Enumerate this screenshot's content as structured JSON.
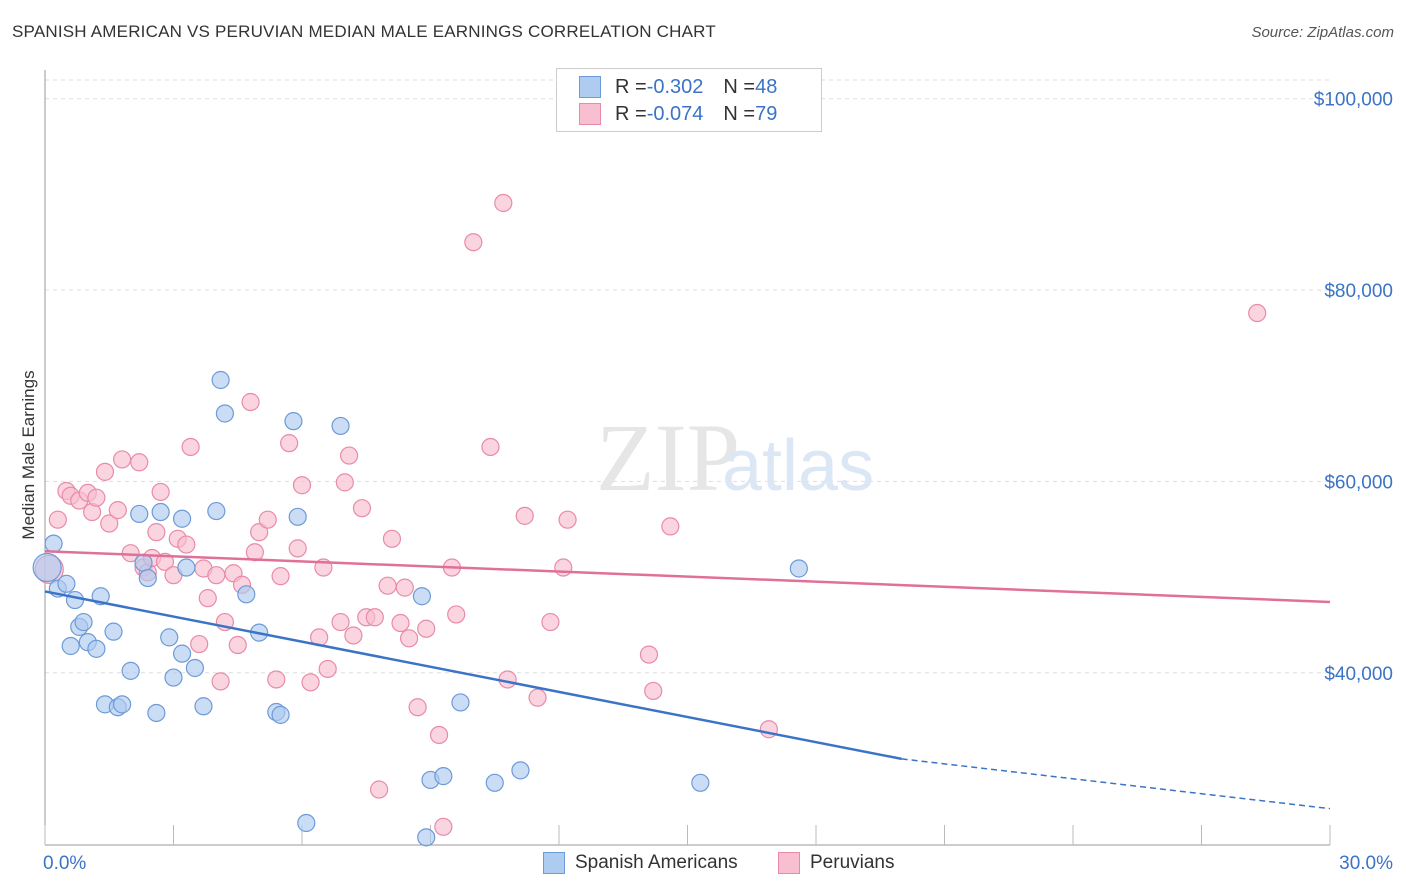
{
  "header": {
    "title": "SPANISH AMERICAN VS PERUVIAN MEDIAN MALE EARNINGS CORRELATION CHART",
    "source": "Source: ZipAtlas.com"
  },
  "legend": {
    "rows": [
      {
        "r_label": "R = ",
        "r_value": "-0.302",
        "n_label": "N = ",
        "n_value": "48"
      },
      {
        "r_label": "R = ",
        "r_value": "-0.074",
        "n_label": "N = ",
        "n_value": "79"
      }
    ]
  },
  "colors": {
    "blue_fill": "#aecbf0",
    "blue_stroke": "#6d9ad8",
    "blue_line": "#3b73c6",
    "pink_fill": "#f7bfd0",
    "pink_stroke": "#e98aaa",
    "pink_line": "#e07098",
    "axis_text": "#3b73c6",
    "grid": "#dddddd"
  },
  "chart_data": {
    "type": "scatter",
    "xlabel": "",
    "ylabel": "Median Male Earnings",
    "xlim": [
      0,
      30
    ],
    "ylim": [
      22000,
      103000
    ],
    "x_tick_labels": [
      "0.0%",
      "30.0%"
    ],
    "y_ticks": [
      40000,
      60000,
      80000,
      100000
    ],
    "y_tick_labels": [
      "$40,000",
      "$60,000",
      "$80,000",
      "$100,000"
    ],
    "grid": true,
    "legend_position": "top-center",
    "watermark": "ZIPatlas",
    "series": [
      {
        "name": "Spanish Americans",
        "trend": {
          "x": [
            0,
            20
          ],
          "y": [
            48500,
            31000
          ],
          "dashed_to": [
            30,
            25800
          ]
        },
        "points": [
          [
            0.05,
            51000
          ],
          [
            0.2,
            53500
          ],
          [
            0.3,
            48800
          ],
          [
            0.5,
            49300
          ],
          [
            0.6,
            42800
          ],
          [
            0.7,
            47600
          ],
          [
            0.8,
            44800
          ],
          [
            0.9,
            45300
          ],
          [
            1.0,
            43200
          ],
          [
            1.2,
            42500
          ],
          [
            1.3,
            48000
          ],
          [
            1.4,
            36700
          ],
          [
            1.6,
            44300
          ],
          [
            1.7,
            36400
          ],
          [
            1.8,
            36700
          ],
          [
            2.0,
            40200
          ],
          [
            2.2,
            56600
          ],
          [
            2.3,
            51500
          ],
          [
            2.4,
            49900
          ],
          [
            2.6,
            35800
          ],
          [
            2.7,
            56800
          ],
          [
            2.9,
            43700
          ],
          [
            3.0,
            39500
          ],
          [
            3.2,
            42000
          ],
          [
            3.2,
            56100
          ],
          [
            3.3,
            51000
          ],
          [
            3.5,
            40500
          ],
          [
            3.7,
            36500
          ],
          [
            4.0,
            56900
          ],
          [
            4.1,
            70600
          ],
          [
            4.2,
            67100
          ],
          [
            4.7,
            48200
          ],
          [
            5.0,
            44200
          ],
          [
            5.4,
            35900
          ],
          [
            5.5,
            35600
          ],
          [
            5.8,
            66300
          ],
          [
            5.9,
            56300
          ],
          [
            6.1,
            24300
          ],
          [
            6.9,
            65800
          ],
          [
            8.8,
            48000
          ],
          [
            8.9,
            22800
          ],
          [
            9.0,
            28800
          ],
          [
            9.3,
            29200
          ],
          [
            9.7,
            36900
          ],
          [
            10.5,
            28500
          ],
          [
            11.1,
            29800
          ],
          [
            15.3,
            28500
          ],
          [
            17.6,
            50900
          ]
        ]
      },
      {
        "name": "Peruvians",
        "trend": {
          "x": [
            0,
            30
          ],
          "y": [
            52700,
            47400
          ]
        },
        "points": [
          [
            0.1,
            50800
          ],
          [
            0.3,
            56000
          ],
          [
            0.5,
            59000
          ],
          [
            0.6,
            58500
          ],
          [
            0.8,
            58000
          ],
          [
            1.0,
            58800
          ],
          [
            1.1,
            56800
          ],
          [
            1.2,
            58300
          ],
          [
            1.4,
            61000
          ],
          [
            1.5,
            55600
          ],
          [
            1.7,
            57000
          ],
          [
            1.8,
            62300
          ],
          [
            2.0,
            52500
          ],
          [
            2.2,
            62000
          ],
          [
            2.3,
            51000
          ],
          [
            2.4,
            50500
          ],
          [
            2.5,
            52000
          ],
          [
            2.6,
            54700
          ],
          [
            2.7,
            58900
          ],
          [
            2.8,
            51600
          ],
          [
            3.0,
            50200
          ],
          [
            3.1,
            54000
          ],
          [
            3.3,
            53400
          ],
          [
            3.4,
            63600
          ],
          [
            3.6,
            43000
          ],
          [
            3.7,
            50900
          ],
          [
            3.8,
            47800
          ],
          [
            4.0,
            50200
          ],
          [
            4.1,
            39100
          ],
          [
            4.2,
            45300
          ],
          [
            4.4,
            50400
          ],
          [
            4.5,
            42900
          ],
          [
            4.6,
            49200
          ],
          [
            4.8,
            68300
          ],
          [
            4.9,
            52600
          ],
          [
            5.0,
            54700
          ],
          [
            5.2,
            56000
          ],
          [
            5.4,
            39300
          ],
          [
            5.5,
            50100
          ],
          [
            5.7,
            64000
          ],
          [
            5.9,
            53000
          ],
          [
            6.0,
            59600
          ],
          [
            6.2,
            39000
          ],
          [
            6.4,
            43700
          ],
          [
            6.5,
            51000
          ],
          [
            6.6,
            40400
          ],
          [
            6.9,
            45300
          ],
          [
            7.0,
            59900
          ],
          [
            7.1,
            62700
          ],
          [
            7.2,
            43900
          ],
          [
            7.4,
            57200
          ],
          [
            7.5,
            45800
          ],
          [
            7.7,
            45800
          ],
          [
            7.8,
            27800
          ],
          [
            8.0,
            49100
          ],
          [
            8.1,
            54000
          ],
          [
            8.3,
            45200
          ],
          [
            8.4,
            48900
          ],
          [
            8.5,
            43600
          ],
          [
            8.7,
            36400
          ],
          [
            8.9,
            44600
          ],
          [
            9.2,
            33500
          ],
          [
            9.3,
            23900
          ],
          [
            9.5,
            51000
          ],
          [
            9.6,
            46100
          ],
          [
            10.0,
            85000
          ],
          [
            10.4,
            63600
          ],
          [
            10.7,
            89100
          ],
          [
            10.8,
            39300
          ],
          [
            11.2,
            56400
          ],
          [
            11.5,
            37400
          ],
          [
            11.8,
            45300
          ],
          [
            12.1,
            51000
          ],
          [
            12.2,
            56000
          ],
          [
            14.1,
            41900
          ],
          [
            14.2,
            38100
          ],
          [
            14.6,
            55300
          ],
          [
            16.9,
            34100
          ],
          [
            28.3,
            77600
          ]
        ]
      }
    ]
  },
  "bottom_legend": [
    "Spanish Americans",
    "Peruvians"
  ]
}
